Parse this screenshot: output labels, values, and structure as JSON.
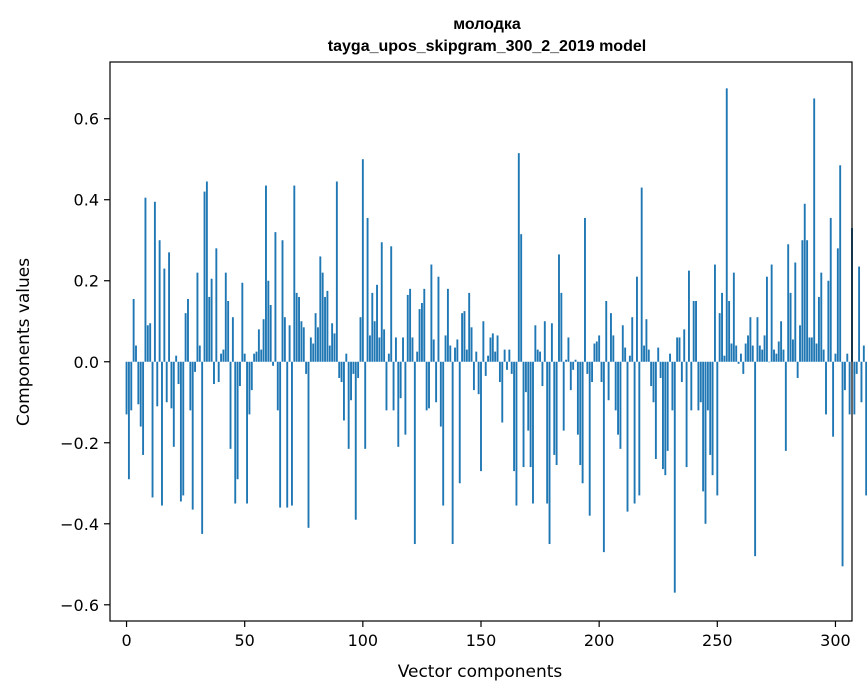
{
  "chart_data": {
    "type": "bar",
    "title": "молодка",
    "subtitle": "tayga_upos_skipgram_300_2_2019 model",
    "xlabel": "Vector components",
    "ylabel": "Components values",
    "xlim": [
      -7,
      307
    ],
    "ylim": [
      -0.64,
      0.74
    ],
    "xticks": [
      0,
      50,
      100,
      150,
      200,
      250,
      300
    ],
    "yticks": [
      -0.6,
      -0.4,
      -0.2,
      0.0,
      0.2,
      0.4,
      0.6
    ],
    "ytick_labels": [
      "−0.6",
      "−0.4",
      "−0.2",
      "0.0",
      "0.2",
      "0.4",
      "0.6"
    ],
    "color": "#1f77b4",
    "grid": false,
    "legend": "none",
    "x_start": 0,
    "values": [
      -0.13,
      -0.29,
      -0.12,
      0.155,
      0.04,
      -0.105,
      -0.16,
      -0.23,
      0.405,
      0.09,
      0.095,
      -0.335,
      0.395,
      -0.11,
      0.3,
      -0.355,
      0.23,
      -0.1,
      0.27,
      -0.115,
      -0.21,
      0.015,
      -0.055,
      -0.345,
      -0.33,
      0.12,
      0.155,
      -0.12,
      -0.365,
      -0.025,
      0.22,
      0.04,
      -0.425,
      0.42,
      0.445,
      0.16,
      0.205,
      -0.055,
      0.28,
      -0.05,
      0.02,
      0.03,
      0.22,
      0.15,
      -0.215,
      0.11,
      -0.35,
      -0.29,
      -0.06,
      0.195,
      0.02,
      -0.35,
      -0.13,
      -0.07,
      0.02,
      0.025,
      0.08,
      0.03,
      0.105,
      0.435,
      0.2,
      0.14,
      -0.01,
      0.32,
      -0.12,
      -0.36,
      0.3,
      0.11,
      -0.36,
      0.09,
      -0.355,
      0.435,
      0.17,
      0.16,
      0.1,
      0.085,
      -0.03,
      -0.41,
      0.06,
      0.045,
      0.12,
      0.085,
      0.26,
      0.22,
      0.16,
      0.175,
      0.04,
      0.095,
      0.07,
      0.445,
      -0.04,
      -0.05,
      -0.145,
      0.02,
      -0.215,
      -0.095,
      -0.03,
      -0.39,
      -0.04,
      0.11,
      0.5,
      -0.215,
      0.355,
      0.065,
      0.17,
      0.1,
      0.19,
      0.06,
      0.295,
      0.08,
      -0.12,
      0.02,
      0.285,
      -0.12,
      0.06,
      -0.21,
      -0.09,
      0.06,
      -0.18,
      0.165,
      0.18,
      0.06,
      -0.45,
      0.025,
      0.13,
      0.145,
      0.18,
      -0.12,
      -0.115,
      0.24,
      0.055,
      -0.1,
      0.21,
      -0.16,
      -0.355,
      0.065,
      0.18,
      0.04,
      -0.45,
      0.035,
      0.055,
      -0.3,
      0.12,
      0.125,
      0.03,
      0.17,
      0.085,
      -0.07,
      0.025,
      -0.08,
      -0.27,
      0.1,
      -0.035,
      0.015,
      0.06,
      0.07,
      0.025,
      0.065,
      -0.05,
      -0.15,
      0.03,
      -0.02,
      0.03,
      -0.03,
      -0.27,
      -0.355,
      0.515,
      0.315,
      -0.26,
      -0.075,
      -0.17,
      -0.26,
      -0.35,
      0.09,
      0.03,
      0.025,
      -0.06,
      0.1,
      -0.35,
      -0.45,
      0.095,
      -0.23,
      -0.255,
      0.265,
      0.17,
      -0.17,
      0.005,
      0.06,
      -0.07,
      -0.02,
      0.005,
      -0.18,
      -0.255,
      -0.3,
      0.355,
      -0.03,
      -0.38,
      -0.05,
      0.045,
      0.05,
      0.065,
      -0.05,
      -0.47,
      0.15,
      -0.095,
      0.12,
      0.065,
      -0.12,
      -0.18,
      -0.215,
      0.09,
      0.035,
      -0.37,
      0.015,
      0.11,
      -0.35,
      0.21,
      -0.33,
      0.43,
      0.04,
      0.105,
      0.03,
      -0.06,
      -0.1,
      -0.24,
      0.035,
      -0.04,
      -0.265,
      -0.28,
      -0.22,
      0.02,
      -0.12,
      -0.57,
      0.06,
      0.06,
      -0.05,
      0.08,
      -0.26,
      0.225,
      -0.12,
      0.15,
      0.15,
      -0.12,
      -0.1,
      -0.32,
      -0.4,
      -0.12,
      -0.23,
      -0.28,
      0.24,
      -0.33,
      0.12,
      0.17,
      0.015,
      0.675,
      0.15,
      0.045,
      0.22,
      0.04,
      -0.005,
      0.02,
      -0.03,
      0.045,
      0.065,
      0.11,
      0.04,
      -0.48,
      0.11,
      0.04,
      0.03,
      0.065,
      0.21,
      0.0,
      0.24,
      0.03,
      0.02,
      0.05,
      0.1,
      0.03,
      -0.22,
      0.29,
      0.17,
      0.055,
      0.245,
      -0.04,
      0.09,
      0.3,
      0.39,
      0.3,
      0.06,
      0.06,
      0.65,
      0.045,
      0.16,
      0.22,
      0.03,
      -0.13,
      0.2,
      0.355,
      -0.185,
      0.02,
      0.28,
      0.485,
      -0.505,
      -0.07,
      0.02,
      -0.13,
      0.33,
      -0.13,
      -0.03,
      0.235,
      -0.1,
      0.04,
      -0.33
    ]
  }
}
